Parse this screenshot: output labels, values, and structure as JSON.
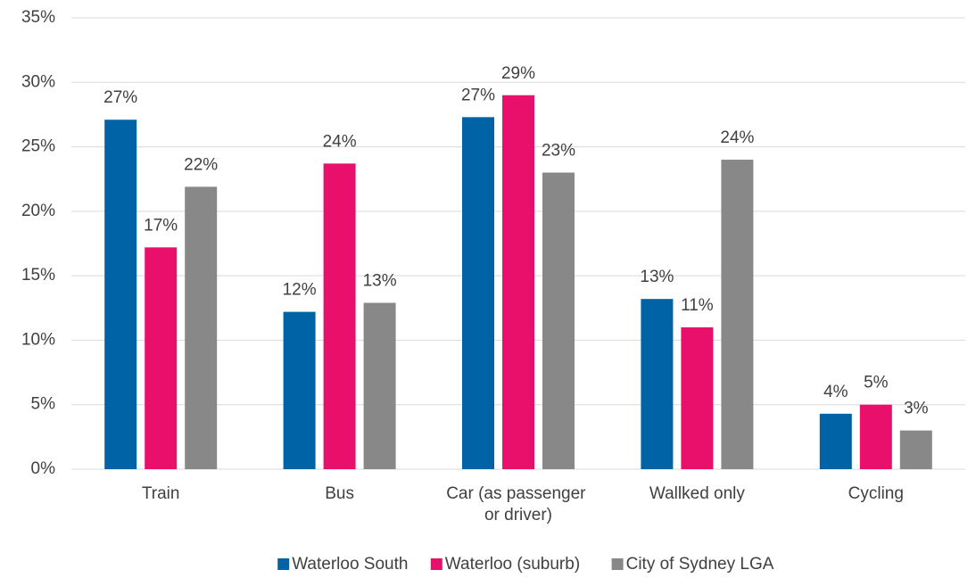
{
  "chart_data": {
    "type": "bar",
    "categories": [
      "Train",
      "Bus",
      "Car (as passenger or driver)",
      "Wallked only",
      "Cycling"
    ],
    "series": [
      {
        "name": "Waterloo South",
        "color": "#0063a6",
        "values": [
          27.1,
          12.2,
          27.3,
          13.2,
          4.3
        ],
        "value_labels": [
          "27%",
          "12%",
          "27%",
          "13%",
          "4%"
        ]
      },
      {
        "name": "Waterloo (suburb)",
        "color": "#e8106a",
        "values": [
          17.2,
          23.7,
          29.0,
          11.0,
          5.0
        ],
        "value_labels": [
          "17%",
          "24%",
          "29%",
          "11%",
          "5%"
        ]
      },
      {
        "name": "City of Sydney LGA",
        "color": "#888888",
        "values": [
          21.9,
          12.9,
          23.0,
          24.0,
          3.0
        ],
        "value_labels": [
          "22%",
          "13%",
          "23%",
          "24%",
          "3%"
        ]
      }
    ],
    "ylim": [
      0,
      35
    ],
    "yticks": [
      {
        "value": 0,
        "label": "0%"
      },
      {
        "value": 5,
        "label": "5%"
      },
      {
        "value": 10,
        "label": "10%"
      },
      {
        "value": 15,
        "label": "15%"
      },
      {
        "value": 20,
        "label": "20%"
      },
      {
        "value": 25,
        "label": "25%"
      },
      {
        "value": 30,
        "label": "30%"
      },
      {
        "value": 35,
        "label": "35%"
      }
    ],
    "grid": true,
    "legend": "bottom"
  }
}
